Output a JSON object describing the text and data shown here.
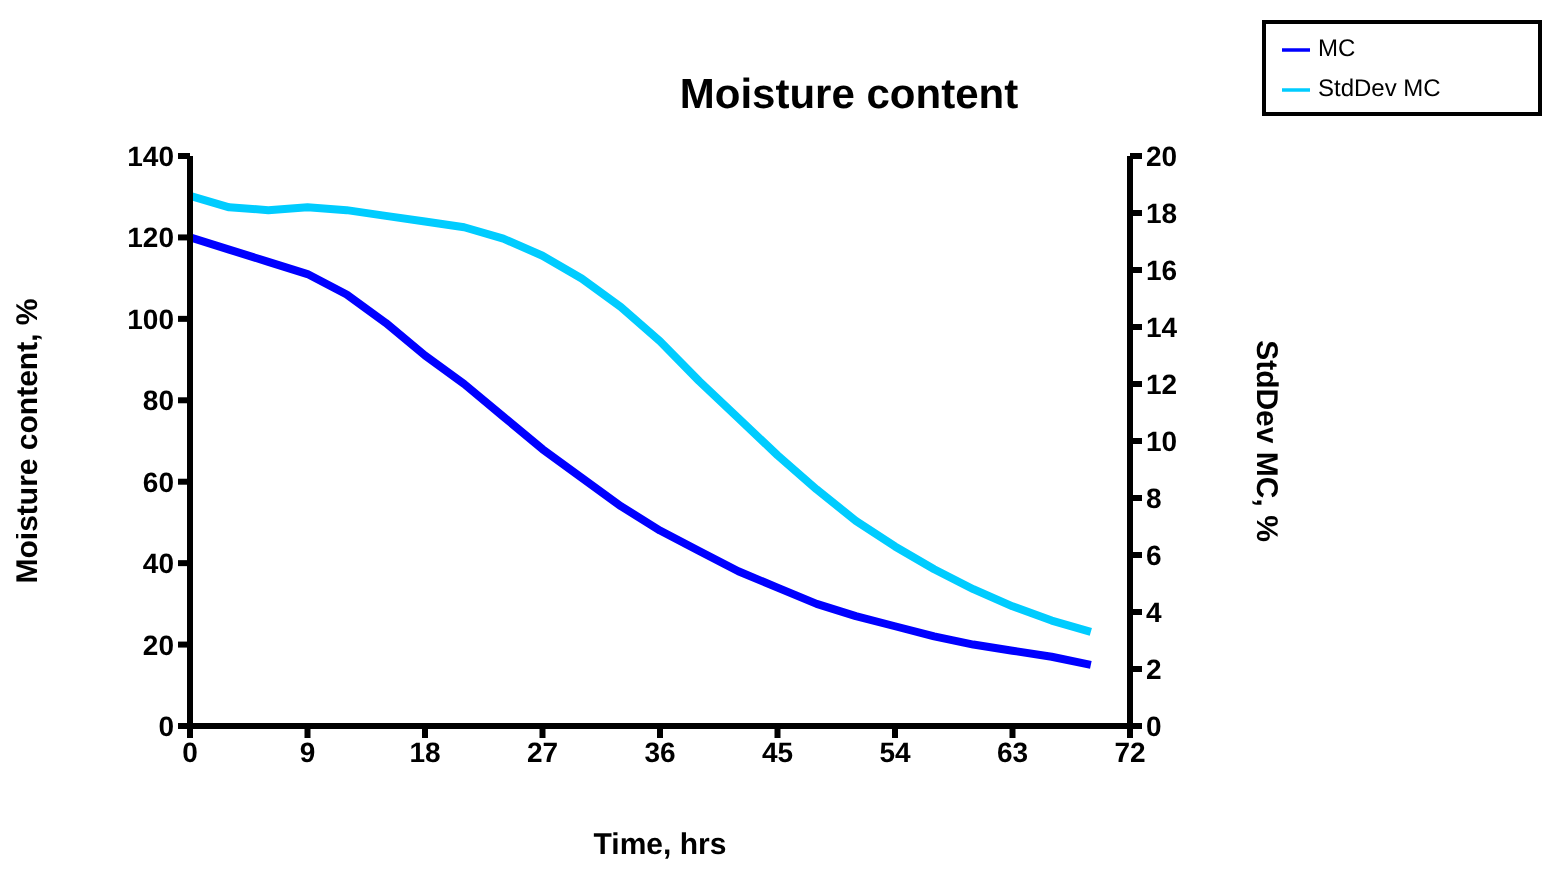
{
  "chart_data": {
    "type": "line",
    "title": "Moisture content",
    "xlabel": "Time, hrs",
    "ylabel": "Moisture content, %",
    "y2label": "StdDev MC, %",
    "x": [
      0,
      3,
      6,
      9,
      12,
      15,
      18,
      21,
      24,
      27,
      30,
      33,
      36,
      39,
      42,
      45,
      48,
      51,
      54,
      57,
      60,
      63,
      66,
      69
    ],
    "series": [
      {
        "name": "MC",
        "color": "#0000ff",
        "values": [
          120,
          117,
          114,
          111,
          106,
          99,
          91,
          84,
          76,
          68,
          61,
          54,
          48,
          43,
          38,
          34,
          30,
          27,
          24.5,
          22,
          20,
          18.5,
          17,
          15
        ]
      },
      {
        "name": "StdDev MC",
        "color": "#00ccff",
        "axis": "y2",
        "values": [
          18.6,
          18.2,
          18.1,
          18.2,
          18.1,
          17.9,
          17.7,
          17.5,
          17.1,
          16.5,
          15.7,
          14.7,
          13.5,
          12.1,
          10.8,
          9.5,
          8.3,
          7.2,
          6.3,
          5.5,
          4.8,
          4.2,
          3.7,
          3.3
        ]
      }
    ],
    "xlim": [
      0,
      72
    ],
    "xticks": [
      0,
      9,
      18,
      27,
      36,
      45,
      54,
      63,
      72
    ],
    "ylim": [
      0,
      140
    ],
    "yticks": [
      0,
      20,
      40,
      60,
      80,
      100,
      120,
      140
    ],
    "y2lim": [
      0,
      20
    ],
    "y2ticks": [
      0,
      2,
      4,
      6,
      8,
      10,
      12,
      14,
      16,
      18,
      20
    ],
    "grid": false,
    "legend": "top right",
    "marker": "none",
    "line_style": "solid"
  }
}
